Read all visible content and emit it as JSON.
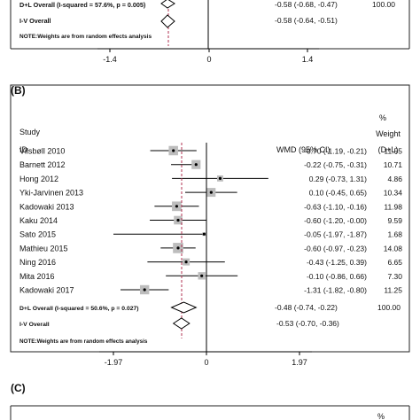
{
  "chart_data": [
    {
      "type": "forest",
      "panel": "(A)",
      "pooled": [
        {
          "label": "D+L Overall (I-squared = 57.6%, p = 0.005)",
          "effect_text": "-0.58 (-0.68, -0.47)",
          "weight_text": "100.00",
          "est": -0.58,
          "lo": -0.68,
          "hi": -0.47
        },
        {
          "label": "I-V Overall",
          "effect_text": "-0.58 (-0.64, -0.51)",
          "weight_text": "",
          "est": -0.58,
          "lo": -0.64,
          "hi": -0.51
        }
      ],
      "note": "NOTE:Weights are from random effects analysis",
      "xticks": [
        -1.4,
        0,
        1.4
      ],
      "xtick_labels": [
        "-1.4",
        "0",
        "1.4"
      ]
    },
    {
      "type": "forest",
      "panel": "(B)",
      "header": {
        "study_line1": "Study",
        "study_line2": "ID",
        "effect": "WMD (95% CI)",
        "weight_line1": "%",
        "weight_line2": "Weight",
        "weight_line3": "(D+L)"
      },
      "studies": [
        {
          "name": "Vilsbøll 2010",
          "est": -0.7,
          "lo": -1.19,
          "hi": -0.21,
          "effect_text": "-0.70 (-1.19, -0.21)",
          "weight": 11.55,
          "weight_text": "11.55"
        },
        {
          "name": "Barnett 2012",
          "est": -0.22,
          "lo": -0.75,
          "hi": -0.31,
          "effect_text": "-0.22 (-0.75, -0.31)",
          "weight": 10.71,
          "weight_text": "10.71"
        },
        {
          "name": "Hong 2012",
          "est": 0.29,
          "lo": -0.73,
          "hi": 1.31,
          "effect_text": "0.29 (-0.73, 1.31)",
          "weight": 4.86,
          "weight_text": "4.86"
        },
        {
          "name": "Yki-Jarvinen 2013",
          "est": 0.1,
          "lo": -0.45,
          "hi": 0.65,
          "effect_text": "0.10 (-0.45, 0.65)",
          "weight": 10.34,
          "weight_text": "10.34"
        },
        {
          "name": "Kadowaki 2013",
          "est": -0.63,
          "lo": -1.1,
          "hi": -0.16,
          "effect_text": "-0.63 (-1.10, -0.16)",
          "weight": 11.98,
          "weight_text": "11.98"
        },
        {
          "name": "Kaku 2014",
          "est": -0.6,
          "lo": -1.2,
          "hi": -0.0,
          "effect_text": "-0.60 (-1.20, -0.00)",
          "weight": 9.59,
          "weight_text": "9.59"
        },
        {
          "name": "Sato 2015",
          "est": -0.05,
          "lo": -1.97,
          "hi": -1.87,
          "effect_text": "-0.05 (-1.97, -1.87)",
          "weight": 1.68,
          "weight_text": "1.68"
        },
        {
          "name": "Mathieu 2015",
          "est": -0.6,
          "lo": -0.97,
          "hi": -0.23,
          "effect_text": "-0.60 (-0.97, -0.23)",
          "weight": 14.08,
          "weight_text": "14.08"
        },
        {
          "name": "Ning 2016",
          "est": -0.43,
          "lo": -1.25,
          "hi": 0.39,
          "effect_text": "-0.43 (-1.25, 0.39)",
          "weight": 6.65,
          "weight_text": "6.65"
        },
        {
          "name": "Mita 2016",
          "est": -0.1,
          "lo": -0.86,
          "hi": 0.66,
          "effect_text": "-0.10 (-0.86, 0.66)",
          "weight": 7.3,
          "weight_text": "7.30"
        },
        {
          "name": "Kadowaki 2017",
          "est": -1.31,
          "lo": -1.82,
          "hi": -0.8,
          "effect_text": "-1.31 (-1.82, -0.80)",
          "weight": 11.25,
          "weight_text": "11.25"
        }
      ],
      "pooled": [
        {
          "label": "D+L Overall (I-squared = 50.6%, p = 0.027)",
          "effect_text": "-0.48 (-0.74, -0.22)",
          "weight_text": "100.00",
          "est": -0.48,
          "lo": -0.74,
          "hi": -0.22
        },
        {
          "label": "I-V Overall",
          "effect_text": "-0.53 (-0.70, -0.36)",
          "weight_text": "",
          "est": -0.53,
          "lo": -0.7,
          "hi": -0.36
        }
      ],
      "note": "NOTE:Weights are from random effects analysis",
      "xticks": [
        -1.97,
        0,
        1.97
      ],
      "xtick_labels": [
        "-1.97",
        "0",
        "1.97"
      ]
    },
    {
      "type": "forest",
      "panel": "(C)",
      "header": {
        "weight_line1": "%"
      }
    }
  ]
}
